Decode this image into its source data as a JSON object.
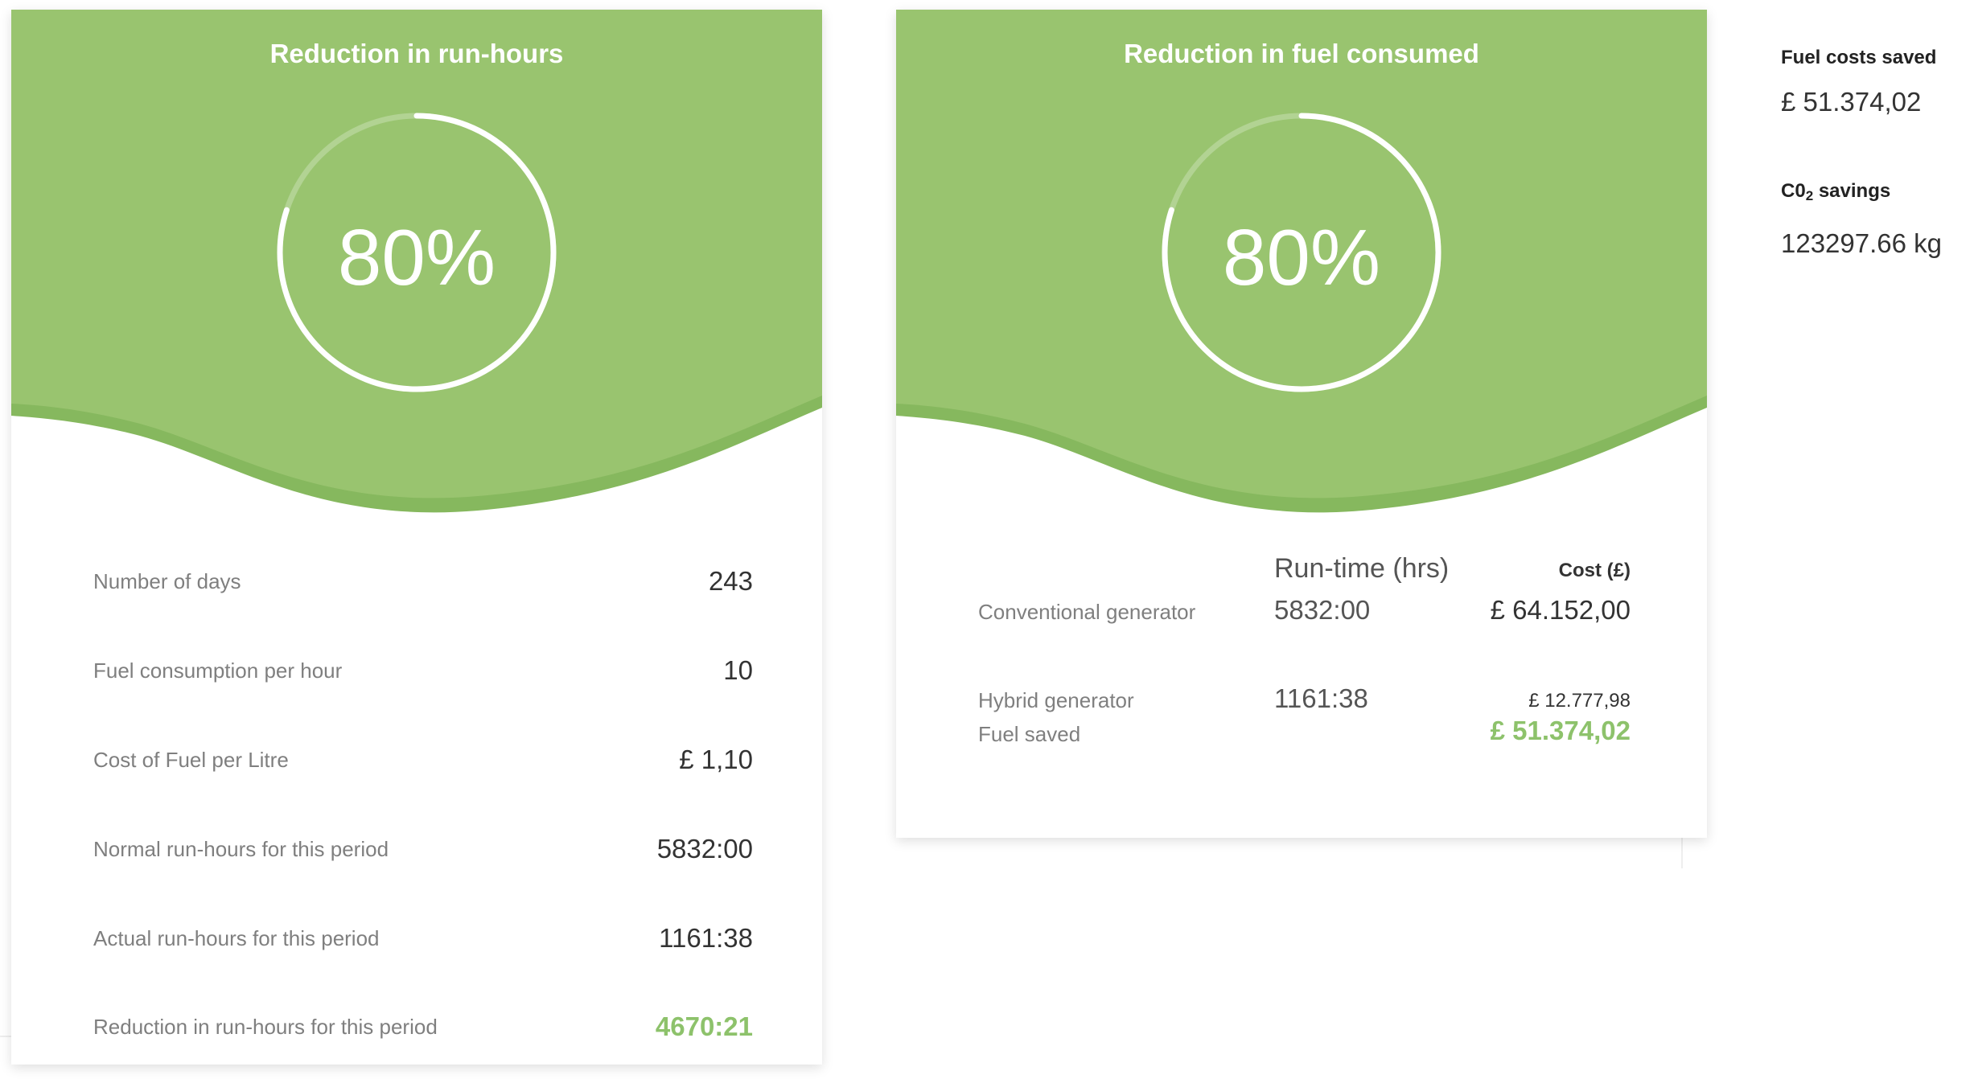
{
  "run_card": {
    "title": "Reduction in run-hours",
    "percent_label": "80%",
    "percent_value": 0.8,
    "rows": [
      {
        "label": "Number of days",
        "value": "243"
      },
      {
        "label": "Fuel consumption per hour",
        "value": "10"
      },
      {
        "label": "Cost of Fuel per Litre",
        "value": "£ 1,10"
      },
      {
        "label": "Normal run-hours for this period",
        "value": "5832:00"
      },
      {
        "label": "Actual run-hours for this period",
        "value": "1161:38"
      },
      {
        "label": "Reduction in run-hours for this period",
        "value": "4670:21"
      }
    ]
  },
  "fuel_card": {
    "title": "Reduction in fuel consumed",
    "percent_label": "80%",
    "percent_value": 0.8,
    "col_runtime": "Run-time (hrs)",
    "col_cost": "Cost (£)",
    "conventional": {
      "label": "Conventional generator",
      "runtime": "5832:00",
      "cost": "£ 64.152,00"
    },
    "hybrid": {
      "label": "Hybrid generator",
      "runtime": "1161:38",
      "cost": "£ 12.777,98"
    },
    "saved": {
      "label": "Fuel saved",
      "cost": "£ 51.374,02"
    }
  },
  "summary": {
    "fuel_costs_title": "Fuel costs saved",
    "fuel_costs_value": "£ 51.374,02",
    "co2_title_prefix": "C0",
    "co2_title_sub": "2",
    "co2_title_suffix": " savings",
    "co2_value": "123297.66 kg"
  },
  "colors": {
    "green": "#99c46f",
    "green_dark": "#86b85e",
    "green_text": "#8dc26b",
    "label_grey": "#7f7f7f"
  }
}
